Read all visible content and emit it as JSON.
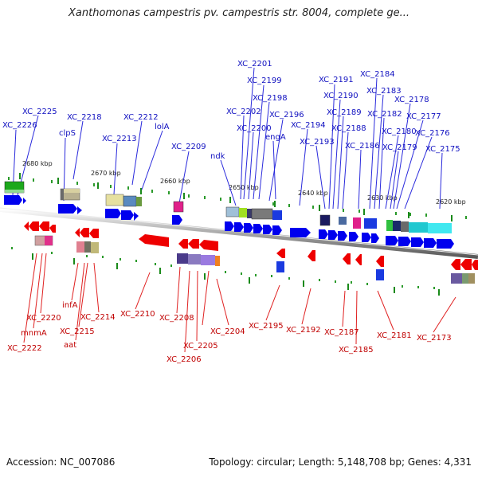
{
  "title": "Xanthomonas campestris pv. campestris str. 8004, complete ge...",
  "footer": {
    "accession": "Accession: NC_007086",
    "summary": "Topology: circular; Length: 5,148,708 bp; Genes: 4,331"
  },
  "ticks": [
    "2680 kbp",
    "2670 kbp",
    "2660 kbp",
    "2650 kbp",
    "2640 kbp",
    "2630 kbp",
    "2620 kbp"
  ],
  "top_labels": [
    "XC_2226",
    "XC_2225",
    "clpS",
    "XC_2218",
    "XC_2213",
    "XC_2212",
    "lolA",
    "XC_2209",
    "ndk",
    "XC_2202",
    "XC_2201",
    "XC_2200",
    "XC_2199",
    "XC_2198",
    "XC_2196",
    "engA",
    "XC_2194",
    "XC_2193",
    "XC_2191",
    "XC_2190",
    "XC_2189",
    "XC_2188",
    "XC_2186",
    "XC_2184",
    "XC_2183",
    "XC_2182",
    "XC_2180",
    "XC_2179",
    "XC_2178",
    "XC_2177",
    "XC_2176",
    "XC_2175"
  ],
  "bottom_labels": [
    "XC_2222",
    "mnmA",
    "XC_2220",
    "infA",
    "aat",
    "XC_2215",
    "XC_2214",
    "XC_2210",
    "XC_2208",
    "XC_2206",
    "XC_2205",
    "XC_2204",
    "XC_2195",
    "XC_2192",
    "XC_2187",
    "XC_2185",
    "XC_2181",
    "XC_2173"
  ],
  "colors": {
    "forward_strand": "#0000ee",
    "reverse_strand": "#ee0000",
    "backbone": "#8a8a8a"
  }
}
